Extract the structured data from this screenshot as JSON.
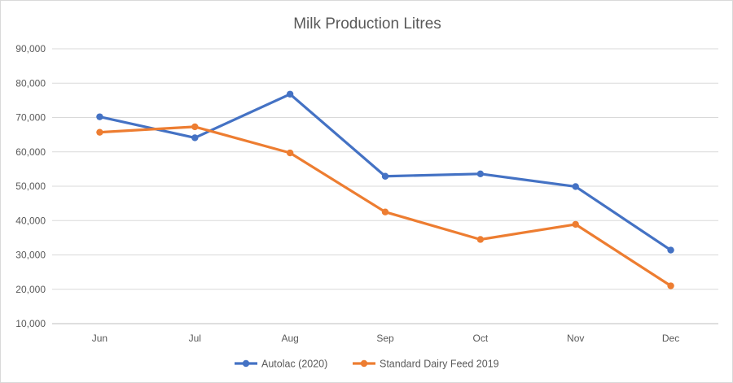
{
  "chart_data": {
    "type": "line",
    "title": "Milk Production Litres",
    "xlabel": "",
    "ylabel": "",
    "categories": [
      "Jun",
      "Jul",
      "Aug",
      "Sep",
      "Oct",
      "Nov",
      "Dec"
    ],
    "ylim": [
      10000,
      90000
    ],
    "yticks": [
      "10,000",
      "20,000",
      "30,000",
      "40,000",
      "50,000",
      "60,000",
      "70,000",
      "80,000",
      "90,000"
    ],
    "grid": true,
    "legend_position": "bottom",
    "series": [
      {
        "name": "Autolac (2020)",
        "color": "#4472c4",
        "values": [
          70200,
          64100,
          76800,
          52900,
          53600,
          49900,
          31400
        ]
      },
      {
        "name": "Standard Dairy Feed 2019",
        "color": "#ed7d31",
        "values": [
          65700,
          67300,
          59700,
          42500,
          34500,
          38900,
          21000
        ]
      }
    ]
  }
}
